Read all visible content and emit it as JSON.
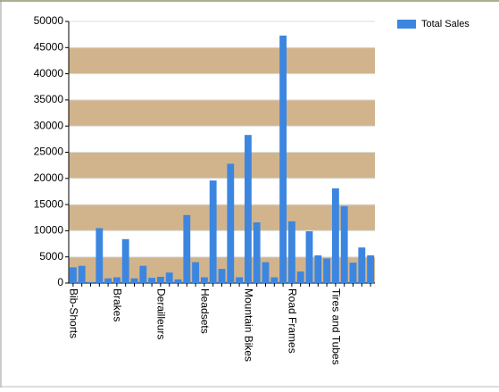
{
  "chart_data": {
    "type": "bar",
    "categories": [
      "Bib-Shorts",
      null,
      null,
      null,
      null,
      "Brakes",
      null,
      null,
      null,
      null,
      "Derailleurs",
      null,
      null,
      null,
      null,
      "Headsets",
      null,
      null,
      null,
      null,
      "Mountain Bikes",
      null,
      null,
      null,
      null,
      "Road Frames",
      null,
      null,
      null,
      null,
      "Tires and Tubes",
      null,
      null,
      null,
      null
    ],
    "series": [
      {
        "name": "Total Sales",
        "color": "#3c86e0",
        "values": [
          3000,
          3300,
          200,
          10500,
          900,
          1100,
          8400,
          900,
          3300,
          1000,
          1200,
          2000,
          700,
          13000,
          4000,
          1100,
          19600,
          2700,
          22800,
          1100,
          28300,
          11600,
          4000,
          1100,
          47300,
          11800,
          2200,
          9900,
          5300,
          4700,
          18100,
          14700,
          3900,
          6800,
          5300
        ]
      }
    ],
    "ylim": [
      0,
      50000
    ],
    "yticks": [
      0,
      5000,
      10000,
      15000,
      20000,
      25000,
      30000,
      35000,
      40000,
      45000,
      50000
    ],
    "interlaced": true,
    "band_color": "#d2b48c",
    "legend": "top-right"
  }
}
